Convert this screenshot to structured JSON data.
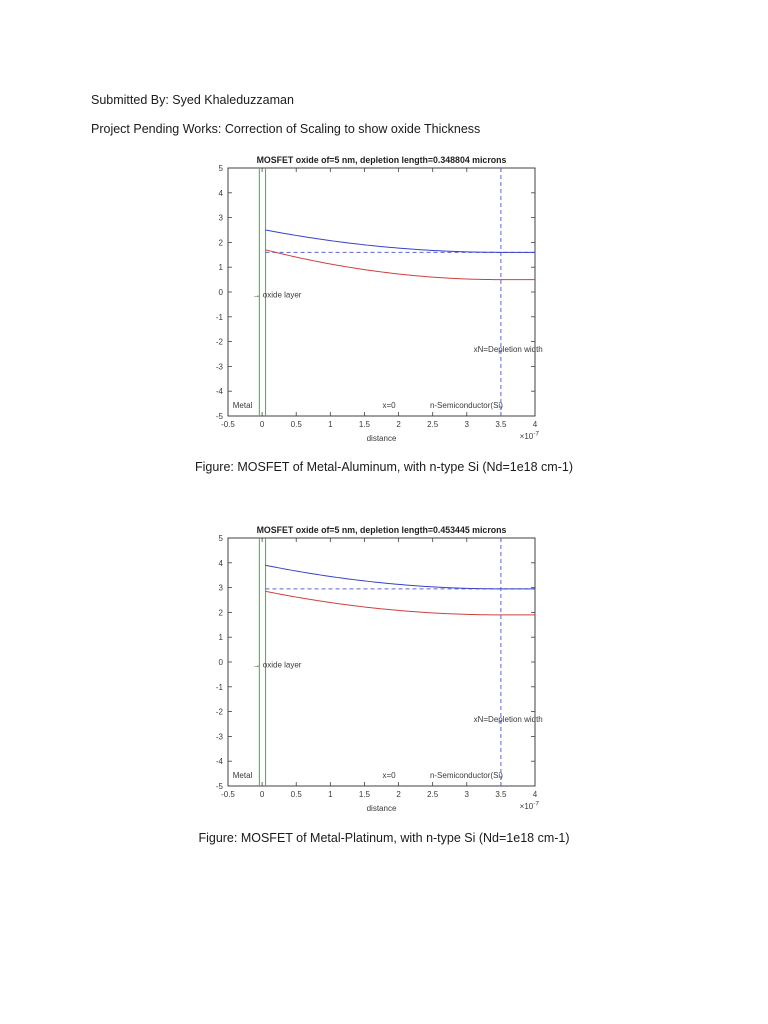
{
  "page": {
    "submitted_by": "Submitted By: Syed Khaleduzzaman",
    "project_line": "Project Pending Works: Correction of Scaling to show oxide Thickness"
  },
  "chart_data": [
    {
      "type": "line",
      "title": "MOSFET oxide of=5 nm, depletion length=0.348804 microns",
      "caption": "Figure: MOSFET of Metal-Aluminum, with n-type Si (Nd=1e18 cm-1)",
      "xlabel": "distance",
      "x_scale": {
        "base": "×10",
        "exp": "-7"
      },
      "xlim": [
        -0.5,
        4
      ],
      "ylim": [
        -5,
        5
      ],
      "x_ticks": [
        -0.5,
        0,
        0.5,
        1,
        1.5,
        2,
        2.5,
        3,
        3.5,
        4
      ],
      "y_ticks": [
        5,
        4,
        3,
        2,
        1,
        0,
        -1,
        -2,
        -3,
        -4,
        -5
      ],
      "grid": false,
      "legend": "none",
      "x_samples": [
        0.05,
        0.5,
        1,
        1.5,
        2,
        2.5,
        3,
        3.5,
        4
      ],
      "series": [
        {
          "name": "band-potential-upper-blue",
          "color": "#3742c8",
          "start_y": 2.5,
          "flat_y": 1.6,
          "values": [
            2.5,
            2.28,
            2.07,
            1.9,
            1.77,
            1.68,
            1.62,
            1.6,
            1.6
          ]
        },
        {
          "name": "band-potential-lower-red",
          "color": "#cf4040",
          "start_y": 1.7,
          "flat_y": 0.5,
          "values": [
            1.7,
            1.41,
            1.13,
            0.9,
            0.73,
            0.6,
            0.53,
            0.5,
            0.5
          ]
        }
      ],
      "reference_lines": {
        "flat_dashed_y": 1.6,
        "depletion_dashed_x": 3.5,
        "oxide_lines_x": [
          -0.04,
          0.05
        ],
        "dashed_color": "#5a66d8",
        "oxide_color": "#2ecc2e"
      },
      "annotations": {
        "oxide": "→ oxide layer",
        "depletion": "xN=Depletion width",
        "metal": "Metal",
        "x_zero": "x=0",
        "semiconductor": "n-Semiconductor(Si)"
      }
    },
    {
      "type": "line",
      "title": "MOSFET oxide of=5 nm, depletion length=0.453445 microns",
      "caption": "Figure: MOSFET of Metal-Platinum, with n-type Si (Nd=1e18 cm-1)",
      "xlabel": "distance",
      "x_scale": {
        "base": "×10",
        "exp": "-7"
      },
      "xlim": [
        -0.5,
        4
      ],
      "ylim": [
        -5,
        5
      ],
      "x_ticks": [
        -0.5,
        0,
        0.5,
        1,
        1.5,
        2,
        2.5,
        3,
        3.5,
        4
      ],
      "y_ticks": [
        5,
        4,
        3,
        2,
        1,
        0,
        -1,
        -2,
        -3,
        -4,
        -5
      ],
      "grid": false,
      "legend": "none",
      "x_samples": [
        0.05,
        0.5,
        1,
        1.5,
        2,
        2.5,
        3,
        3.5,
        4
      ],
      "series": [
        {
          "name": "band-potential-upper-blue",
          "color": "#3742c8",
          "start_y": 3.9,
          "flat_y": 2.95,
          "values": [
            3.9,
            3.67,
            3.45,
            3.27,
            3.13,
            3.03,
            2.97,
            2.95,
            2.95
          ]
        },
        {
          "name": "band-potential-lower-red",
          "color": "#cf4040",
          "start_y": 2.85,
          "flat_y": 1.9,
          "values": [
            2.85,
            2.62,
            2.4,
            2.22,
            2.08,
            1.98,
            1.92,
            1.9,
            1.9
          ]
        }
      ],
      "reference_lines": {
        "flat_dashed_y": 2.95,
        "depletion_dashed_x": 3.5,
        "oxide_lines_x": [
          -0.04,
          0.05
        ],
        "dashed_color": "#5a66d8",
        "oxide_color": "#2ecc2e"
      },
      "annotations": {
        "oxide": "→ oxide layer",
        "depletion": "xN=Depletion width",
        "metal": "Metal",
        "x_zero": "x=0",
        "semiconductor": "n-Semiconductor(Si)"
      }
    }
  ]
}
